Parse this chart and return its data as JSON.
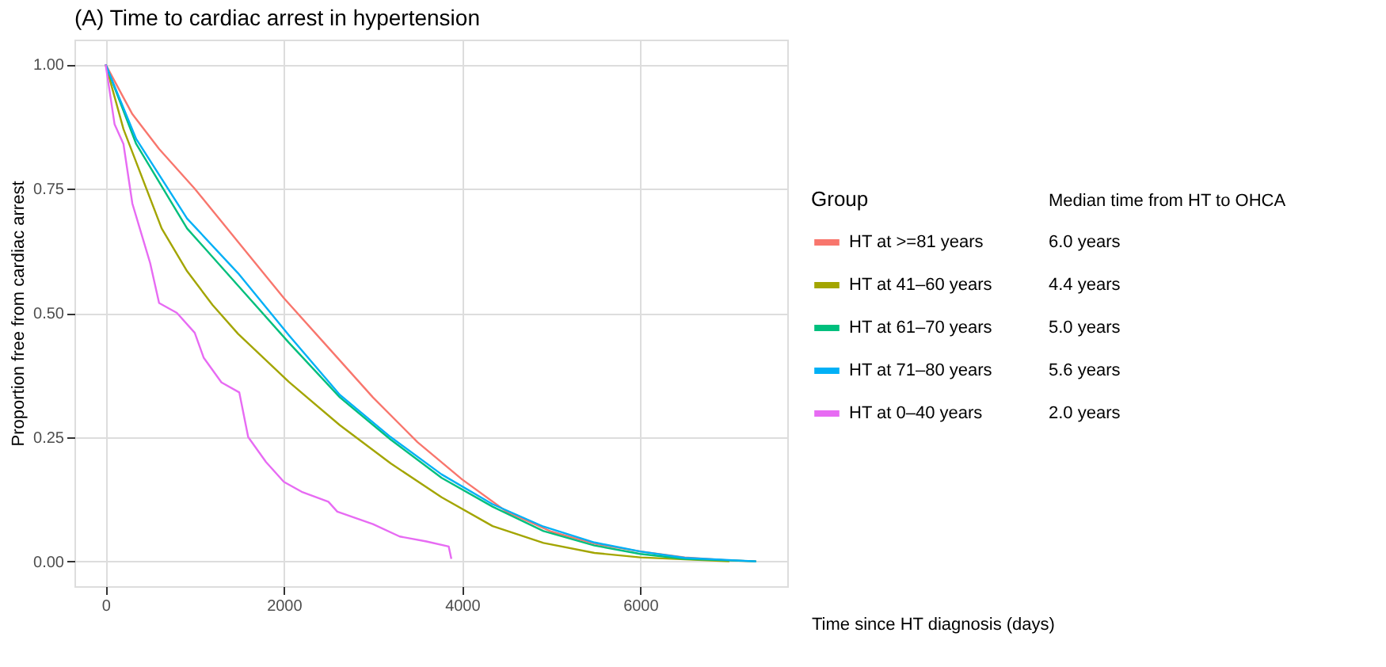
{
  "chart_data": {
    "type": "line",
    "title": "(A) Time to cardiac arrest in hypertension",
    "xlabel": "Time since HT diagnosis (days)",
    "ylabel": "Proportion free from cardiac arrest",
    "legend_title": "Group",
    "legend": "right",
    "grid": true,
    "line_style": "solid",
    "marker": "none",
    "xlim": [
      -350,
      7650
    ],
    "xticks": [
      0,
      2000,
      4000,
      6000
    ],
    "ylim": [
      -0.05,
      1.05
    ],
    "yticks": [
      {
        "value": 0,
        "label": "0.00"
      },
      {
        "value": 0.25,
        "label": "0.25"
      },
      {
        "value": 0.5,
        "label": "0.50"
      },
      {
        "value": 0.75,
        "label": "0.75"
      },
      {
        "value": 1,
        "label": "1.00"
      }
    ],
    "annotations": [
      "Median time from HT to OHCA",
      "6.0 years",
      "4.4 years",
      "5.0 years",
      "5.6 years",
      "2.0 years"
    ],
    "series": [
      {
        "name": "HT at >=81 years",
        "color": "#f8766d",
        "x": [
          0,
          300,
          600,
          1000,
          1500,
          2000,
          2500,
          3000,
          3500,
          4000,
          4500,
          5000,
          5500,
          6000,
          6500,
          7000,
          7300
        ],
        "values": [
          1,
          0.9,
          0.83,
          0.75,
          0.64,
          0.53,
          0.43,
          0.33,
          0.24,
          0.165,
          0.1,
          0.06,
          0.035,
          0.02,
          0.008,
          0.002,
          0
        ]
      },
      {
        "name": "HT  at 41–60 years",
        "color": "#a3a500",
        "x": [
          0,
          200,
          629,
          914,
          1200,
          1486,
          2057,
          2629,
          3200,
          3771,
          4343,
          4914,
          5486,
          6000,
          7000
        ],
        "values": [
          1,
          0.87,
          0.67,
          0.584,
          0.516,
          0.458,
          0.361,
          0.274,
          0.197,
          0.129,
          0.071,
          0.037,
          0.017,
          0.008,
          0
        ]
      },
      {
        "name": "HT  at 61–70 years",
        "color": "#00bf7d",
        "x": [
          0,
          343,
          914,
          1486,
          2057,
          2629,
          3200,
          3771,
          4343,
          4914,
          5486,
          6000,
          6500,
          7300
        ],
        "values": [
          1,
          0.84,
          0.67,
          0.555,
          0.44,
          0.33,
          0.245,
          0.168,
          0.11,
          0.061,
          0.032,
          0.015,
          0.005,
          0
        ]
      },
      {
        "name": "HT  at 71–80 years",
        "color": "#00b0f6",
        "x": [
          0,
          343,
          914,
          1486,
          2057,
          2629,
          3200,
          3771,
          4343,
          4914,
          5486,
          6000,
          6500,
          7300
        ],
        "values": [
          1,
          0.85,
          0.69,
          0.58,
          0.455,
          0.335,
          0.25,
          0.175,
          0.115,
          0.07,
          0.038,
          0.02,
          0.007,
          0
        ]
      },
      {
        "name": "HT  at 0–40 years",
        "color": "#e76bf3",
        "x": [
          0,
          100,
          200,
          300,
          400,
          500,
          600,
          800,
          1000,
          1100,
          1300,
          1500,
          1600,
          1800,
          2000,
          2200,
          2500,
          2600,
          3000,
          3300,
          3600,
          3850,
          3880
        ],
        "values": [
          1,
          0.88,
          0.84,
          0.72,
          0.66,
          0.6,
          0.52,
          0.5,
          0.46,
          0.41,
          0.36,
          0.34,
          0.25,
          0.2,
          0.16,
          0.14,
          0.12,
          0.1,
          0.075,
          0.05,
          0.04,
          0.03,
          0.005
        ]
      }
    ]
  }
}
